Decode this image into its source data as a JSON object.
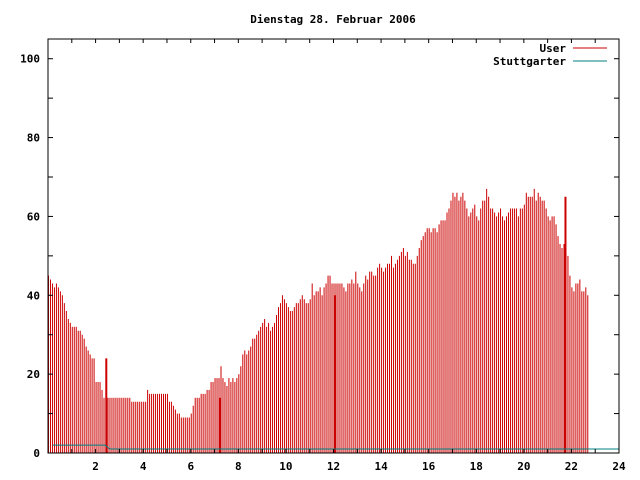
{
  "chart_data": {
    "type": "bar",
    "title": "Dienstag 28. Februar 2006",
    "xlabel": "",
    "ylabel": "",
    "xlim": [
      0,
      24
    ],
    "ylim": [
      0,
      105
    ],
    "x_ticks": [
      "2",
      "4",
      "6",
      "8",
      "10",
      "12",
      "14",
      "16",
      "18",
      "20",
      "22",
      "24"
    ],
    "y_ticks": [
      "0",
      "20",
      "40",
      "60",
      "80",
      "100"
    ],
    "grid": false,
    "legend": {
      "placement": "top-right",
      "entries": [
        {
          "name": "User",
          "color": "#cc0000"
        },
        {
          "name": "Stuttgarter",
          "color": "#008080"
        }
      ]
    },
    "series": [
      {
        "name": "User",
        "color": "#cc0000",
        "style": "impulses",
        "interval_minutes": 5,
        "values": [
          45,
          44,
          43,
          42,
          43,
          42,
          41,
          40,
          38,
          36,
          34,
          33,
          32,
          32,
          32,
          31,
          31,
          30,
          29,
          27,
          26,
          25,
          24,
          24,
          18,
          18,
          18,
          16,
          14,
          14,
          14,
          14,
          14,
          14,
          14,
          14,
          14,
          14,
          14,
          14,
          14,
          14,
          13,
          13,
          13,
          13,
          13,
          13,
          13,
          13,
          16,
          15,
          15,
          15,
          15,
          15,
          15,
          15,
          15,
          15,
          15,
          13,
          13,
          12,
          11,
          10,
          10,
          9,
          9,
          9,
          9,
          9,
          10,
          12,
          14,
          14,
          14,
          15,
          15,
          15,
          16,
          16,
          18,
          18,
          19,
          19,
          19,
          22,
          19,
          18,
          17,
          19,
          18,
          19,
          18,
          19,
          20,
          22,
          25,
          26,
          25,
          26,
          27,
          29,
          29,
          30,
          31,
          32,
          33,
          34,
          32,
          33,
          31,
          32,
          33,
          35,
          37,
          38,
          40,
          39,
          38,
          37,
          36,
          36,
          37,
          38,
          38,
          39,
          40,
          39,
          38,
          38,
          39,
          43,
          40,
          41,
          41,
          42,
          40,
          42,
          43,
          45,
          45,
          43,
          43,
          43,
          43,
          43,
          43,
          42,
          41,
          43,
          43,
          44,
          43,
          46,
          43,
          42,
          41,
          43,
          45,
          44,
          46,
          46,
          45,
          45,
          47,
          48,
          47,
          46,
          47,
          48,
          48,
          50,
          47,
          48,
          49,
          50,
          51,
          52,
          50,
          51,
          49,
          49,
          48,
          48,
          50,
          52,
          54,
          55,
          56,
          57,
          57,
          56,
          57,
          57,
          56,
          58,
          59,
          59,
          59,
          61,
          62,
          64,
          66,
          65,
          66,
          64,
          65,
          66,
          64,
          62,
          60,
          61,
          62,
          63,
          60,
          59,
          62,
          64,
          64,
          67,
          65,
          62,
          62,
          61,
          60,
          61,
          62,
          60,
          59,
          60,
          61,
          62,
          62,
          62,
          62,
          60,
          62,
          62,
          63,
          66,
          65,
          65,
          65,
          67,
          64,
          66,
          65,
          64,
          64,
          62,
          60,
          59,
          60,
          60,
          58,
          55,
          53,
          52,
          53,
          52,
          50,
          45,
          42,
          41,
          43,
          43,
          44,
          41,
          41,
          42,
          40
        ]
      },
      {
        "name": "Stuttgarter",
        "color": "#008080",
        "style": "lines",
        "points": [
          [
            0.2,
            2
          ],
          [
            2.4,
            2
          ],
          [
            2.6,
            1
          ],
          [
            24,
            1
          ]
        ]
      }
    ],
    "highlights": [
      {
        "x": 2.45,
        "value": 24
      },
      {
        "x": 7.25,
        "value": 14
      },
      {
        "x": 12.05,
        "value": 40
      },
      {
        "x": 21.75,
        "value": 65
      }
    ]
  }
}
